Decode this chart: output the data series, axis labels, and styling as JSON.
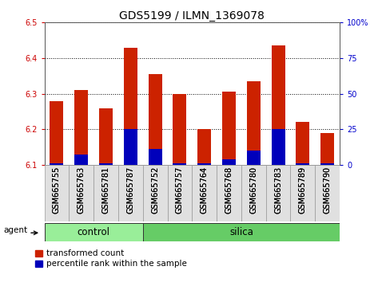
{
  "title": "GDS5199 / ILMN_1369078",
  "samples": [
    "GSM665755",
    "GSM665763",
    "GSM665781",
    "GSM665787",
    "GSM665752",
    "GSM665757",
    "GSM665764",
    "GSM665768",
    "GSM665780",
    "GSM665783",
    "GSM665789",
    "GSM665790"
  ],
  "n_control": 4,
  "n_silica": 8,
  "red_values": [
    6.28,
    6.31,
    6.26,
    6.43,
    6.355,
    6.3,
    6.2,
    6.305,
    6.335,
    6.435,
    6.22,
    6.19
  ],
  "blue_values": [
    6.105,
    6.13,
    6.105,
    6.2,
    6.145,
    6.105,
    6.105,
    6.115,
    6.14,
    6.2,
    6.105,
    6.105
  ],
  "base": 6.1,
  "ylim": [
    6.1,
    6.5
  ],
  "yticks_left": [
    6.1,
    6.2,
    6.3,
    6.4,
    6.5
  ],
  "yticks_right_labels": [
    "0",
    "25",
    "50",
    "75",
    "100%"
  ],
  "left_color": "#cc0000",
  "right_color": "#0000cc",
  "bar_red": "#cc2200",
  "bar_blue": "#0000bb",
  "grid_color": "#000000",
  "plot_bg": "#ffffff",
  "fig_bg": "#ffffff",
  "control_color": "#99ee99",
  "silica_color": "#66cc66",
  "agent_label": "agent",
  "legend_red": "transformed count",
  "legend_blue": "percentile rank within the sample",
  "bar_width": 0.55,
  "title_fontsize": 10,
  "tick_fontsize": 7,
  "label_fontsize": 7.5,
  "group_fontsize": 8.5,
  "agent_fontsize": 7.5
}
